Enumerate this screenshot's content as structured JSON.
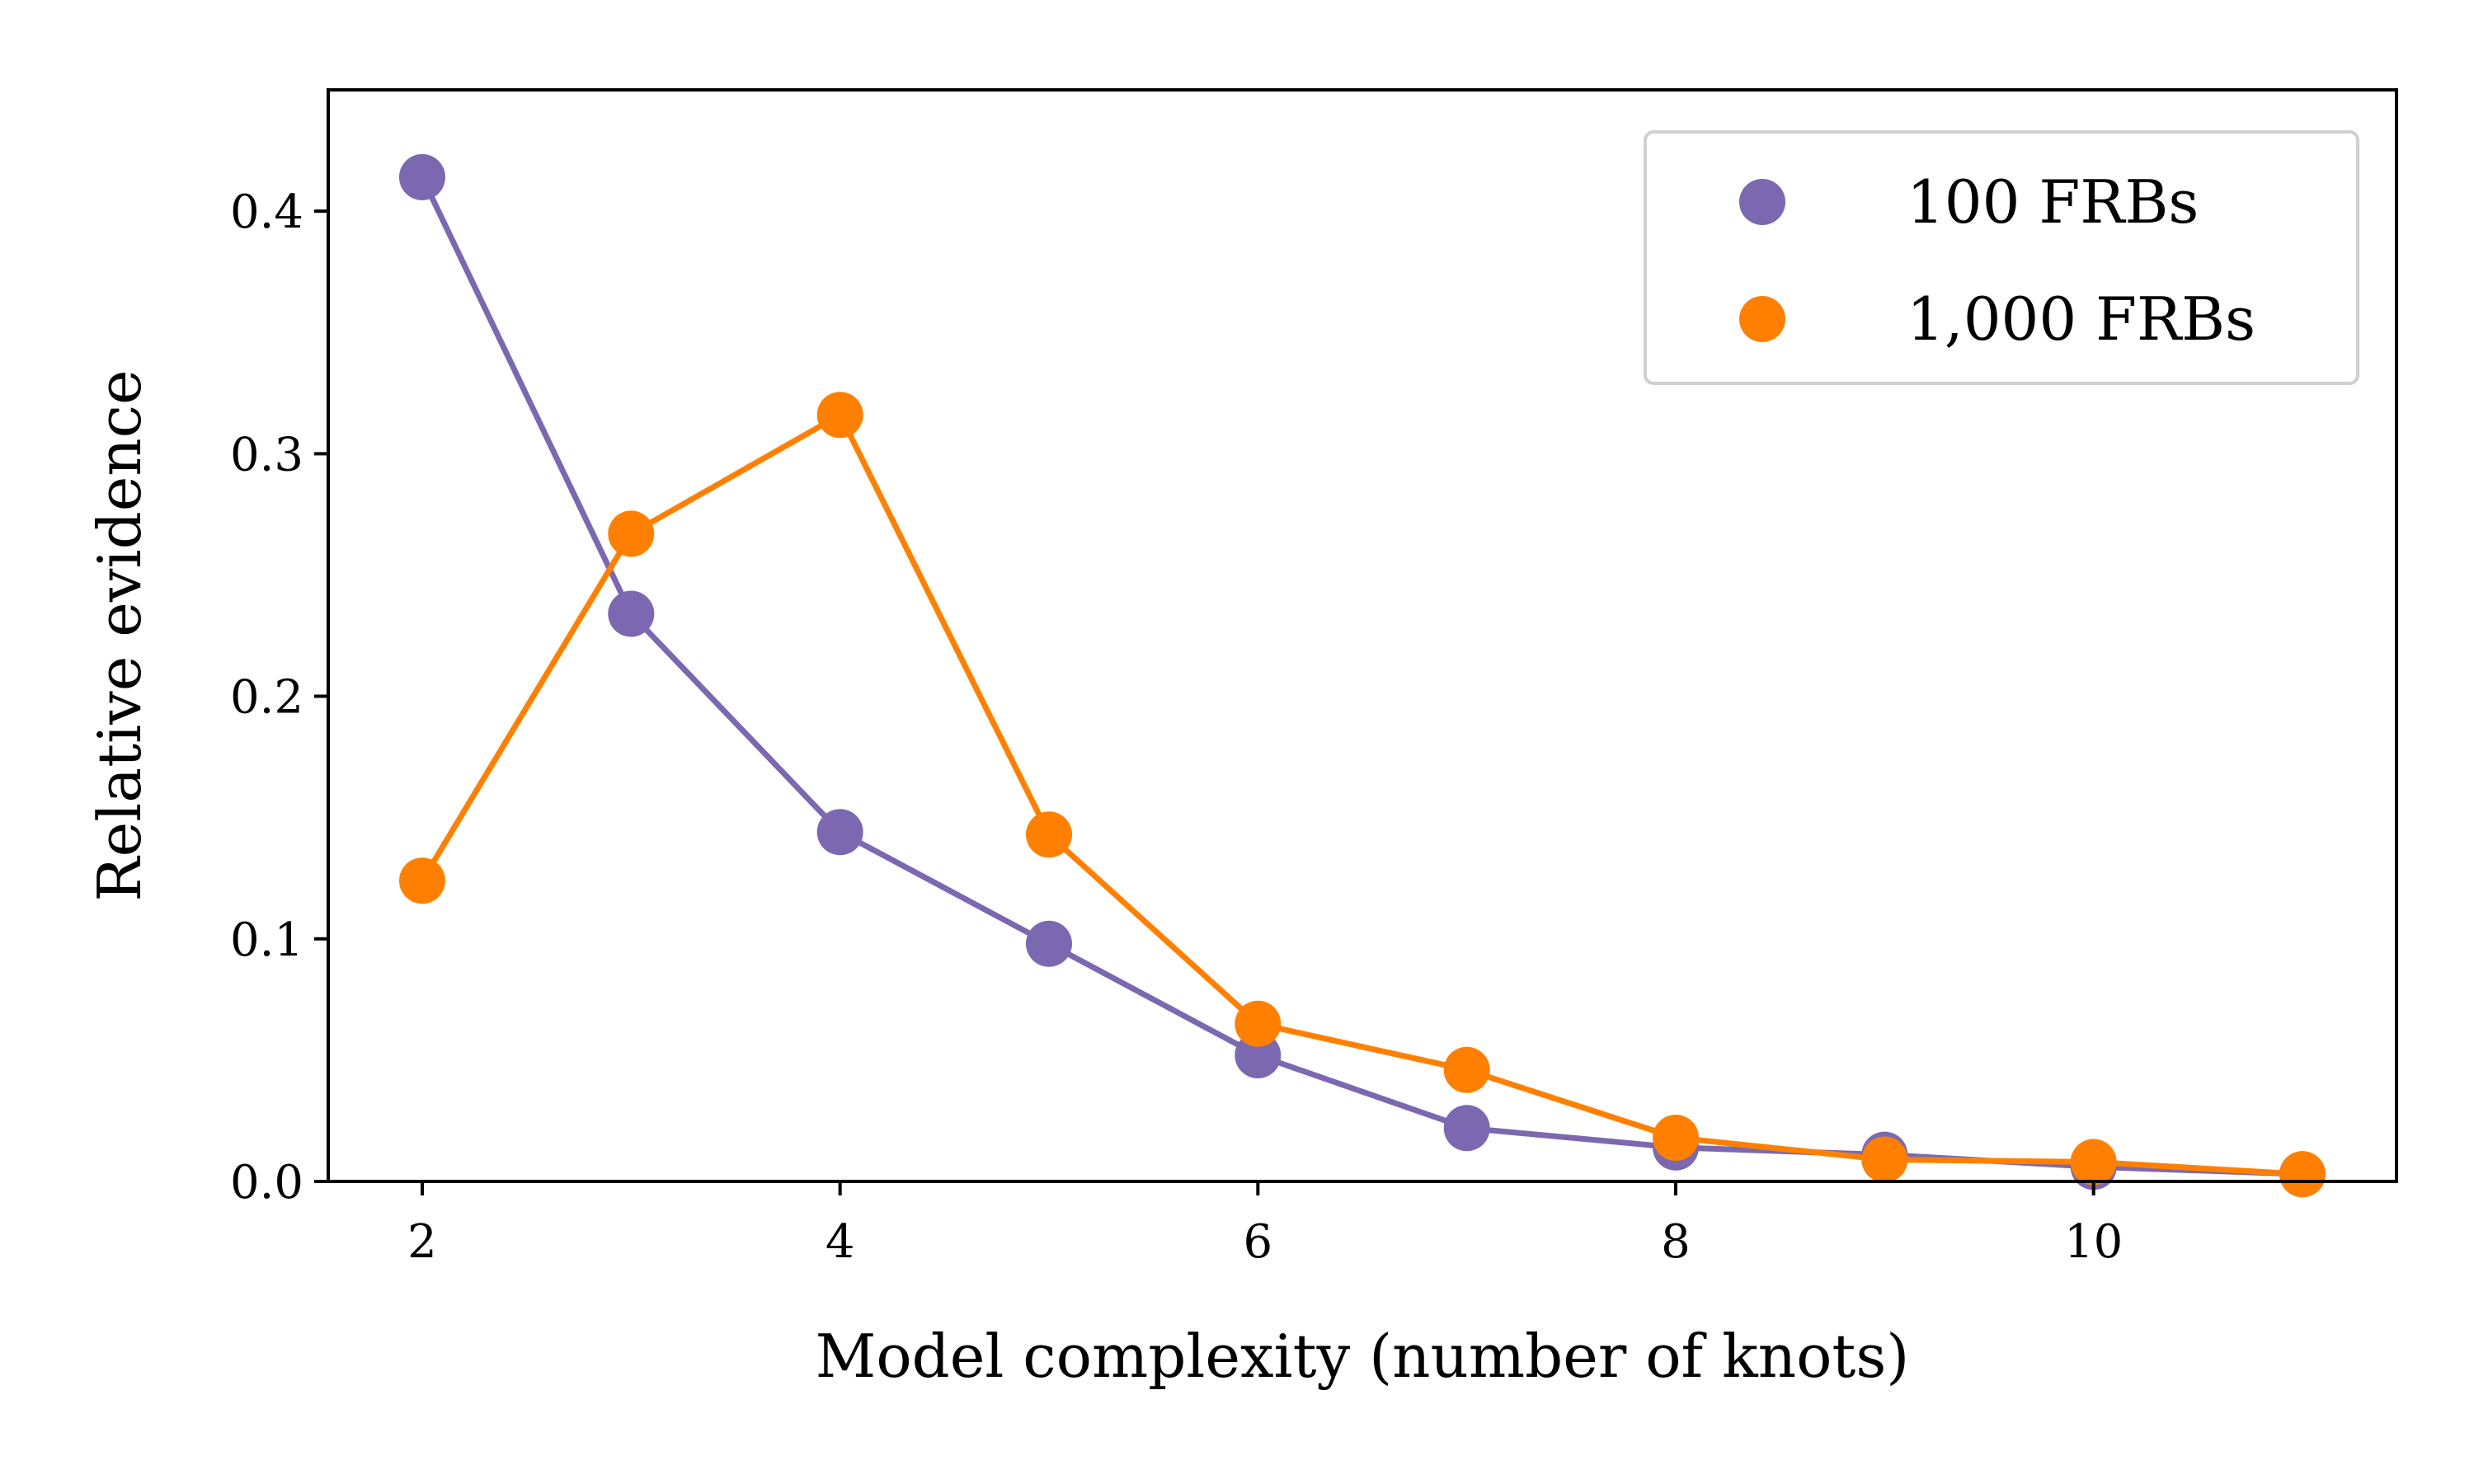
{
  "chart_data": {
    "type": "line",
    "title": "",
    "xlabel": "Model complexity (number of knots)",
    "ylabel": "Relative evidence",
    "xlim": [
      1.55,
      11.45
    ],
    "ylim": [
      0.0,
      0.45
    ],
    "xticks": [
      2,
      4,
      6,
      8,
      10
    ],
    "yticks": [
      0.0,
      0.1,
      0.2,
      0.3,
      0.4
    ],
    "xtick_labels": [
      "2",
      "4",
      "6",
      "8",
      "10"
    ],
    "ytick_labels": [
      "0.0",
      "0.1",
      "0.2",
      "0.3",
      "0.4"
    ],
    "grid": false,
    "legend_position": "top-right",
    "x": [
      2,
      3,
      4,
      5,
      6,
      7,
      8,
      9,
      10,
      11
    ],
    "series": [
      {
        "name": "100 FRBs",
        "color": "#7b68b0",
        "values": [
          0.414,
          0.234,
          0.144,
          0.098,
          0.052,
          0.022,
          0.014,
          0.011,
          0.006,
          0.003
        ]
      },
      {
        "name": "1,000 FRBs",
        "color": "#ff8000",
        "values": [
          0.124,
          0.267,
          0.316,
          0.143,
          0.065,
          0.046,
          0.018,
          0.009,
          0.008,
          0.003
        ]
      }
    ]
  }
}
